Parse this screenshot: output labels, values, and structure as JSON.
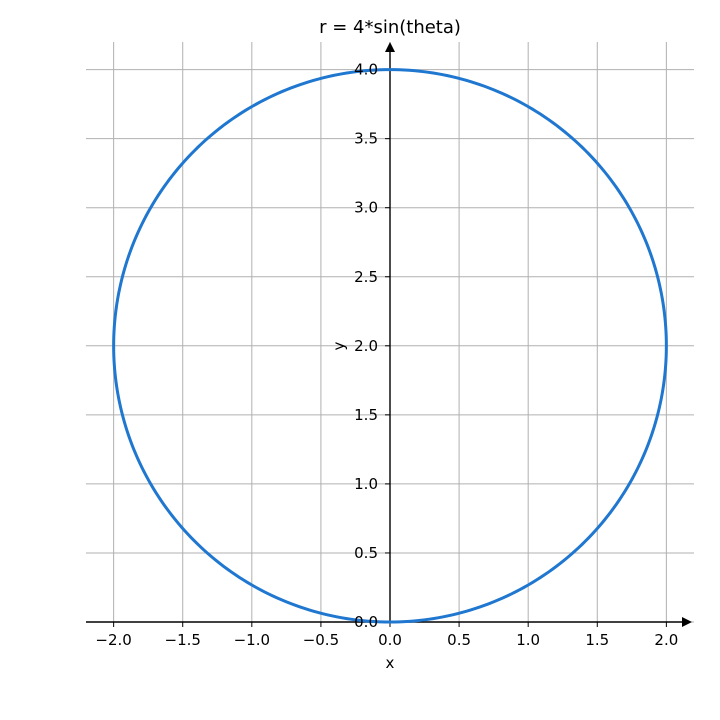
{
  "chart_data": {
    "type": "line",
    "title": "r = 4*sin(theta)",
    "xlabel": "x",
    "ylabel": "y",
    "xlim": [
      -2.2,
      2.2
    ],
    "ylim": [
      0.0,
      4.2
    ],
    "x_ticks": [
      -2.0,
      -1.5,
      -1.0,
      -0.5,
      0.0,
      0.5,
      1.0,
      1.5,
      2.0
    ],
    "y_ticks": [
      0.0,
      0.5,
      1.0,
      1.5,
      2.0,
      2.5,
      3.0,
      3.5,
      4.0
    ],
    "x_tick_labels": [
      "−2.0",
      "−1.5",
      "−1.0",
      "−0.5",
      "0.0",
      "0.5",
      "1.0",
      "1.5",
      "2.0"
    ],
    "y_tick_labels": [
      "0.0",
      "0.5",
      "1.0",
      "1.5",
      "2.0",
      "2.5",
      "3.0",
      "3.5",
      "4.0"
    ],
    "grid": true,
    "series": [
      {
        "color": "#1f77d0",
        "x": [
          0.0,
          0.9389,
          1.7288,
          1.9877,
          1.4923,
          0.345,
          0.0,
          -0.345,
          -1.4923,
          -1.9877,
          -1.7288,
          -0.9389,
          0.0
        ],
        "y": [
          0.0,
          0.2485,
          1.0,
          2.2244,
          3.332,
          3.9693,
          4.0,
          3.9693,
          3.332,
          2.2244,
          1.0,
          0.2485,
          0.0
        ]
      }
    ]
  }
}
